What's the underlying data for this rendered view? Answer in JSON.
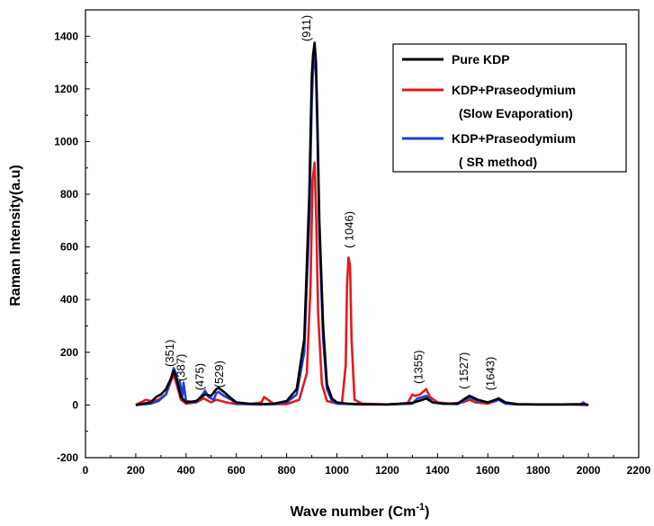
{
  "chart_data": {
    "type": "line",
    "title": "",
    "xlabel": "Wave number (Cm",
    "xlabel_sup": "-1",
    "xlabel_close": ")",
    "ylabel": "Raman Intensity(a.u)",
    "xlim": [
      0,
      2200
    ],
    "ylim": [
      -200,
      1500
    ],
    "xticks": [
      0,
      200,
      400,
      600,
      800,
      1000,
      1200,
      1400,
      1600,
      1800,
      2000,
      2200
    ],
    "yticks": [
      -200,
      0,
      200,
      400,
      600,
      800,
      1000,
      1200,
      1400
    ],
    "grid": false,
    "legend_position": "top-right",
    "series": [
      {
        "name": "Pure KDP",
        "color": "#000000",
        "x": [
          200,
          260,
          280,
          300,
          320,
          340,
          351,
          365,
          380,
          400,
          440,
          475,
          500,
          520,
          529,
          550,
          580,
          600,
          650,
          700,
          750,
          800,
          840,
          870,
          890,
          900,
          905,
          911,
          917,
          922,
          930,
          945,
          960,
          980,
          1000,
          1040,
          1100,
          1200,
          1300,
          1340,
          1355,
          1380,
          1420,
          1480,
          1510,
          1527,
          1560,
          1600,
          1630,
          1643,
          1670,
          1720,
          1800,
          1900,
          1980,
          2000
        ],
        "y": [
          0,
          10,
          30,
          40,
          60,
          100,
          130,
          90,
          30,
          10,
          15,
          40,
          35,
          60,
          65,
          50,
          25,
          10,
          5,
          3,
          5,
          15,
          60,
          250,
          800,
          1250,
          1330,
          1375,
          1300,
          1100,
          700,
          300,
          80,
          25,
          10,
          5,
          3,
          2,
          8,
          20,
          25,
          10,
          5,
          5,
          25,
          35,
          20,
          10,
          20,
          25,
          10,
          3,
          2,
          2,
          3,
          0
        ]
      },
      {
        "name": "KDP+Praseodymium",
        "name_line2": "(Slow Evaporation)",
        "color": "#e31a1c",
        "x": [
          200,
          220,
          240,
          260,
          290,
          320,
          340,
          351,
          365,
          380,
          400,
          440,
          470,
          480,
          500,
          520,
          540,
          560,
          600,
          650,
          700,
          710,
          725,
          750,
          800,
          850,
          880,
          895,
          903,
          911,
          918,
          925,
          940,
          960,
          1000,
          1020,
          1035,
          1040,
          1046,
          1052,
          1058,
          1070,
          1100,
          1200,
          1280,
          1300,
          1310,
          1330,
          1355,
          1370,
          1400,
          1450,
          1500,
          1527,
          1550,
          1600,
          1630,
          1643,
          1660,
          1700,
          1800,
          1900,
          2000
        ],
        "y": [
          0,
          10,
          20,
          15,
          20,
          40,
          90,
          115,
          70,
          20,
          5,
          10,
          25,
          20,
          10,
          20,
          15,
          10,
          3,
          3,
          10,
          30,
          20,
          3,
          3,
          20,
          120,
          450,
          850,
          920,
          700,
          350,
          80,
          15,
          5,
          5,
          150,
          450,
          560,
          530,
          250,
          20,
          5,
          2,
          5,
          40,
          35,
          40,
          60,
          30,
          10,
          5,
          10,
          20,
          10,
          5,
          15,
          25,
          10,
          3,
          2,
          2,
          0
        ]
      },
      {
        "name": "KDP+Praseodymium",
        "name_line2": "( SR method)",
        "color": "#1f3fd6",
        "x": [
          200,
          260,
          290,
          320,
          340,
          351,
          360,
          370,
          375,
          385,
          390,
          400,
          440,
          470,
          475,
          490,
          510,
          520,
          529,
          550,
          580,
          600,
          650,
          700,
          750,
          800,
          840,
          870,
          890,
          900,
          905,
          911,
          917,
          922,
          930,
          945,
          960,
          980,
          1000,
          1100,
          1200,
          1300,
          1320,
          1340,
          1355,
          1380,
          1420,
          1480,
          1510,
          1527,
          1560,
          1600,
          1630,
          1643,
          1670,
          1720,
          1800,
          1900,
          1970,
          1980,
          1990,
          2000
        ],
        "y": [
          0,
          5,
          15,
          40,
          100,
          140,
          120,
          60,
          90,
          30,
          85,
          15,
          10,
          45,
          55,
          30,
          20,
          45,
          50,
          35,
          20,
          5,
          3,
          2,
          3,
          10,
          40,
          200,
          700,
          1150,
          1280,
          1320,
          1250,
          1050,
          650,
          250,
          60,
          15,
          5,
          2,
          2,
          5,
          25,
          30,
          35,
          10,
          5,
          3,
          20,
          30,
          15,
          10,
          15,
          20,
          5,
          2,
          2,
          2,
          3,
          10,
          3,
          0
        ]
      }
    ],
    "annotations": [
      {
        "text": "(351)",
        "x": 351,
        "y": 145
      },
      {
        "text": "(387)",
        "x": 395,
        "y": 90
      },
      {
        "text": "(475)",
        "x": 470,
        "y": 55
      },
      {
        "text": "(529)",
        "x": 548,
        "y": 65
      },
      {
        "text": "(911)",
        "x": 895,
        "y": 1380
      },
      {
        "text": "( 1046)",
        "x": 1065,
        "y": 595
      },
      {
        "text": "(1355)",
        "x": 1340,
        "y": 80
      },
      {
        "text": "( 1527)",
        "x": 1520,
        "y": 60
      },
      {
        "text": "(1643)",
        "x": 1625,
        "y": 55
      }
    ]
  }
}
